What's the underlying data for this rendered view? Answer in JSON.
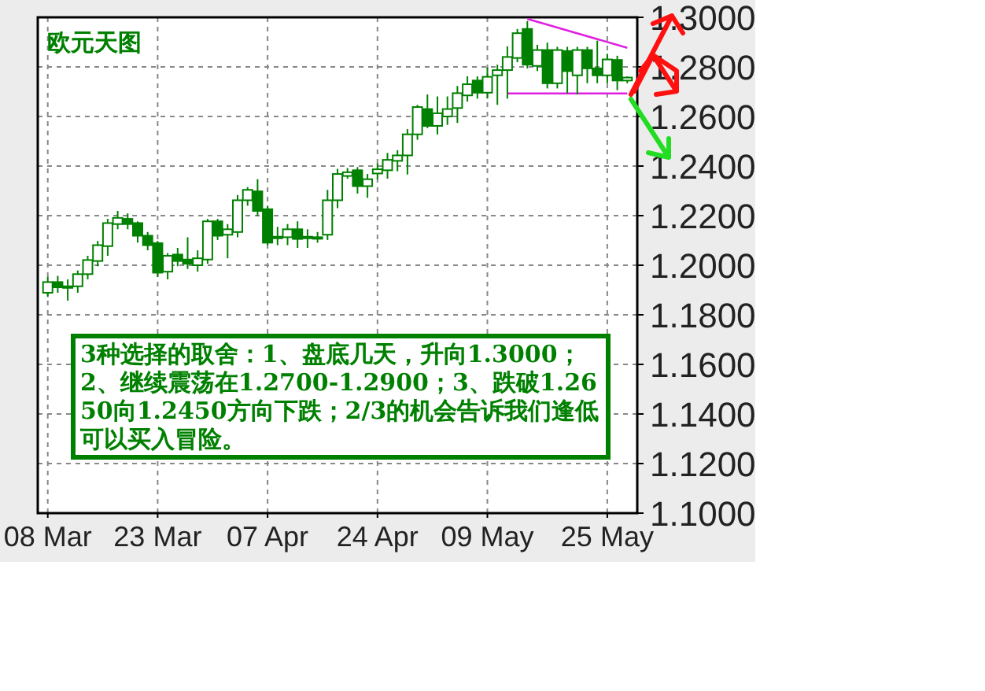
{
  "chart_data": {
    "type": "candlestick",
    "title": "欧元天图",
    "color": "#008000",
    "categories": [
      "08 Mar",
      null,
      null,
      null,
      null,
      null,
      null,
      null,
      null,
      null,
      null,
      "23 Mar",
      null,
      null,
      null,
      null,
      null,
      null,
      null,
      null,
      null,
      null,
      "07 Apr",
      null,
      null,
      null,
      null,
      null,
      null,
      null,
      null,
      null,
      null,
      "24 Apr",
      null,
      null,
      null,
      null,
      null,
      null,
      null,
      null,
      null,
      null,
      "09 May",
      null,
      null,
      null,
      null,
      null,
      null,
      null,
      null,
      null,
      null,
      null,
      "25 May",
      null,
      null
    ],
    "ohlc": [
      [
        1.1889,
        1.1953,
        1.1872,
        1.1932
      ],
      [
        1.1932,
        1.1957,
        1.1889,
        1.1911
      ],
      [
        1.1911,
        1.1943,
        1.1857,
        1.1915
      ],
      [
        1.1915,
        1.1979,
        1.1889,
        1.1964
      ],
      [
        1.1964,
        1.2038,
        1.1943,
        1.2021
      ],
      [
        1.2017,
        1.2098,
        1.1996,
        1.2081
      ],
      [
        1.2077,
        1.2187,
        1.2038,
        1.217
      ],
      [
        1.2166,
        1.2219,
        1.2145,
        1.2191
      ],
      [
        1.2187,
        1.2209,
        1.2145,
        1.2166
      ],
      [
        1.217,
        1.2177,
        1.2091,
        1.2119
      ],
      [
        1.2119,
        1.2134,
        1.206,
        1.2081
      ],
      [
        1.2089,
        1.2098,
        1.1953,
        1.197
      ],
      [
        1.1974,
        1.2049,
        1.1943,
        1.2038
      ],
      [
        1.2043,
        1.207,
        1.1996,
        1.2017
      ],
      [
        1.2023,
        1.2113,
        1.1985,
        1.2006
      ],
      [
        1.2,
        1.206,
        1.1974,
        1.2028
      ],
      [
        1.2023,
        1.2187,
        1.2006,
        1.2177
      ],
      [
        1.2177,
        1.2187,
        1.2102,
        1.2119
      ],
      [
        1.2123,
        1.2166,
        1.2028,
        1.2145
      ],
      [
        1.2134,
        1.2283,
        1.2113,
        1.2262
      ],
      [
        1.2262,
        1.2315,
        1.224,
        1.2304
      ],
      [
        1.2298,
        1.2347,
        1.2198,
        1.2219
      ],
      [
        1.2226,
        1.224,
        1.2081,
        1.2091
      ],
      [
        1.2111,
        1.2155,
        1.2081,
        1.2115
      ],
      [
        1.2113,
        1.2166,
        1.2081,
        1.2145
      ],
      [
        1.2145,
        1.2177,
        1.207,
        1.2106
      ],
      [
        1.2115,
        1.2145,
        1.207,
        1.2111
      ],
      [
        1.2111,
        1.2134,
        1.2091,
        1.2113
      ],
      [
        1.2123,
        1.2304,
        1.2102,
        1.2262
      ],
      [
        1.2262,
        1.2389,
        1.223,
        1.2368
      ],
      [
        1.236,
        1.2392,
        1.2349,
        1.2375
      ],
      [
        1.2383,
        1.2396,
        1.2289,
        1.2319
      ],
      [
        1.2319,
        1.2368,
        1.2272,
        1.2347
      ],
      [
        1.237,
        1.2411,
        1.2347,
        1.2387
      ],
      [
        1.2383,
        1.2453,
        1.2349,
        1.2425
      ],
      [
        1.2421,
        1.2464,
        1.2379,
        1.2443
      ],
      [
        1.2443,
        1.2549,
        1.2366,
        1.2528
      ],
      [
        1.2528,
        1.2647,
        1.2506,
        1.2638
      ],
      [
        1.263,
        1.2689,
        1.2553,
        1.2562
      ],
      [
        1.2562,
        1.2681,
        1.2528,
        1.2613
      ],
      [
        1.26,
        1.2681,
        1.2566,
        1.263
      ],
      [
        1.2634,
        1.2723,
        1.2574,
        1.2694
      ],
      [
        1.2685,
        1.2762,
        1.266,
        1.273
      ],
      [
        1.2745,
        1.2762,
        1.2672,
        1.2696
      ],
      [
        1.2696,
        1.2798,
        1.2672,
        1.276
      ],
      [
        1.2766,
        1.2809,
        1.2647,
        1.2787
      ],
      [
        1.2787,
        1.2883,
        1.2672,
        1.284
      ],
      [
        1.2836,
        1.2953,
        1.2819,
        1.2936
      ],
      [
        1.2953,
        1.2985,
        1.2794,
        1.2809
      ],
      [
        1.2804,
        1.2889,
        1.2783,
        1.2868
      ],
      [
        1.2868,
        1.2898,
        1.2713,
        1.2734
      ],
      [
        1.2734,
        1.2881,
        1.2713,
        1.2868
      ],
      [
        1.2864,
        1.2881,
        1.2694,
        1.2783
      ],
      [
        1.2766,
        1.2881,
        1.2689,
        1.2868
      ],
      [
        1.2868,
        1.2881,
        1.2734,
        1.2794
      ],
      [
        1.2794,
        1.2906,
        1.2734,
        1.2766
      ],
      [
        1.2766,
        1.2853,
        1.2734,
        1.283
      ],
      [
        1.2828,
        1.2845,
        1.2706,
        1.2745
      ],
      [
        1.2745,
        1.2762,
        1.2734,
        1.2757
      ]
    ],
    "series": [
      {
        "type": "line",
        "color": "#e020e0",
        "values": [
          null,
          null,
          null,
          null,
          null,
          null,
          null,
          null,
          null,
          null,
          null,
          null,
          null,
          null,
          null,
          null,
          null,
          null,
          null,
          null,
          null,
          null,
          null,
          null,
          null,
          null,
          null,
          null,
          null,
          null,
          null,
          null,
          null,
          null,
          null,
          null,
          null,
          null,
          null,
          null,
          null,
          null,
          null,
          null,
          null,
          null,
          null,
          null,
          1.2994,
          null,
          null,
          null,
          null,
          null,
          null,
          null,
          null,
          null,
          1.2877
        ]
      },
      {
        "type": "line",
        "color": "#e020e0",
        "values": [
          null,
          null,
          null,
          null,
          null,
          null,
          null,
          null,
          null,
          null,
          null,
          null,
          null,
          null,
          null,
          null,
          null,
          null,
          null,
          null,
          null,
          null,
          null,
          null,
          null,
          null,
          null,
          null,
          null,
          null,
          null,
          null,
          null,
          null,
          null,
          null,
          null,
          null,
          null,
          null,
          null,
          null,
          null,
          null,
          null,
          null,
          1.2693,
          null,
          null,
          null,
          null,
          null,
          null,
          null,
          null,
          null,
          null,
          null,
          1.2693
        ]
      }
    ],
    "ylim": [
      1.1,
      1.3
    ],
    "yticks": [
      {
        "value": 1.1,
        "label": "1.1000"
      },
      {
        "value": 1.12,
        "label": "1.1200"
      },
      {
        "value": 1.14,
        "label": "1.1400"
      },
      {
        "value": 1.16,
        "label": "1.1600"
      },
      {
        "value": 1.18,
        "label": "1.1800"
      },
      {
        "value": 1.2,
        "label": "1.2000"
      },
      {
        "value": 1.22,
        "label": "1.2200"
      },
      {
        "value": 1.24,
        "label": "1.2400"
      },
      {
        "value": 1.26,
        "label": "1.2600"
      },
      {
        "value": 1.28,
        "label": "1.2800"
      },
      {
        "value": 1.3,
        "label": "1.3000"
      }
    ],
    "grid": true,
    "annotations": [
      "3种选择的取舍：1、盘底几天，升向1.3000；2、继续震荡在1.2700-1.2900；3、跌破1.2650向1.2450方向下跌；2/3的机会告诉我们逢低可以买入冒险。"
    ]
  }
}
